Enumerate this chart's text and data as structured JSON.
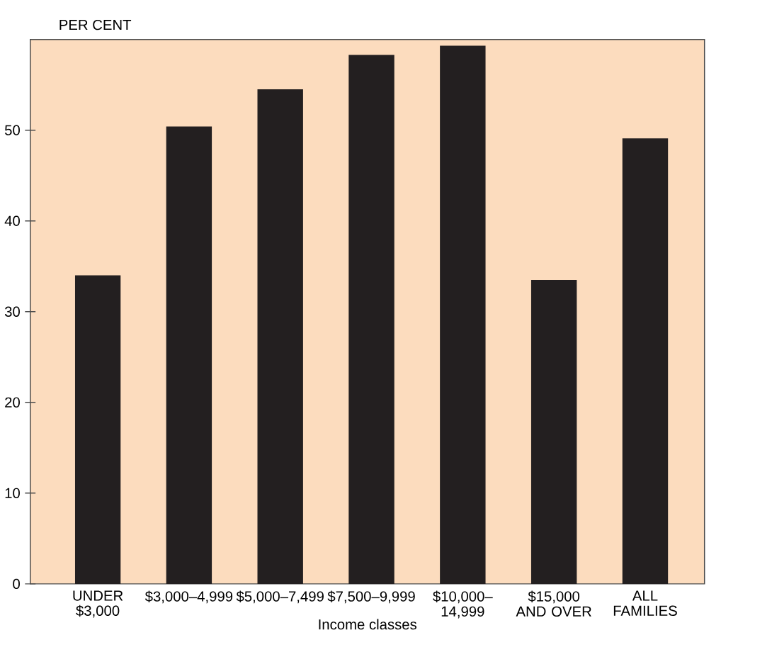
{
  "chart_data": {
    "type": "bar",
    "ylabel": "PER CENT",
    "xlabel": "Income classes",
    "categories": [
      "UNDER $3,000",
      "$3,000–4,999",
      "$5,000–7,499",
      "$7,500–9,999",
      "$10,000–14,999",
      "$15,000 AND OVER",
      "ALL FAMILIES"
    ],
    "values": [
      34.0,
      50.4,
      54.5,
      58.3,
      59.3,
      33.5,
      49.1
    ],
    "color": "#231f20",
    "ylim": [
      0,
      60
    ],
    "yticks": [
      0,
      10,
      20,
      30,
      40,
      50
    ],
    "grid": false
  }
}
